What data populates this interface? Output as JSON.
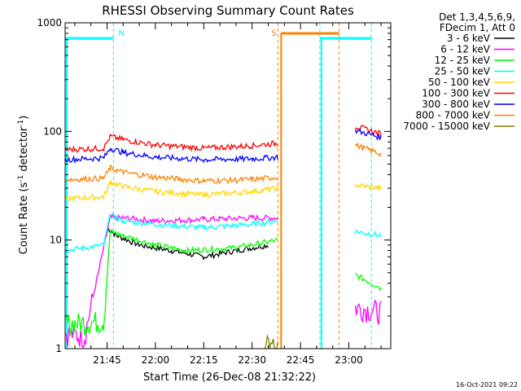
{
  "chart_data": {
    "type": "line",
    "title": "RHESSI Observing Summary Count Rates",
    "xlabel": "Start Time (26-Dec-08 21:32:22)",
    "ylabel_main": "Count Rate (s",
    "ylabel_exp1": "-1",
    "ylabel_mid": " detector",
    "ylabel_exp2": "-1",
    "ylabel_end": ")",
    "y_scale": "log",
    "ylim": [
      1,
      1000
    ],
    "xlim": [
      "21:32",
      "23:13"
    ],
    "y_ticks": [
      "1",
      "10",
      "100",
      "1000"
    ],
    "x_ticks": [
      "21:45",
      "22:00",
      "22:15",
      "22:30",
      "22:45",
      "23:00"
    ],
    "legend_header": [
      "Det 1,3,4,5,6,9,",
      "FDecim 1, Att 0"
    ],
    "legend_position": "right",
    "timestamp": "16-Oct-2021 09:22",
    "series": [
      {
        "name": "3 - 6 keV",
        "color": "#000000",
        "t": [
          "21:45",
          "21:48",
          "21:55",
          "22:05",
          "22:15",
          "22:25",
          "22:35",
          "23:02",
          "23:10"
        ],
        "values": [
          13,
          11,
          9,
          8,
          7,
          8,
          9,
          null,
          null
        ]
      },
      {
        "name": "6 - 12 keV",
        "color": "#ff00ff",
        "t": [
          "21:32",
          "21:38",
          "21:46",
          "21:50",
          "22:00",
          "22:15",
          "22:30",
          "22:38",
          "23:02",
          "23:10"
        ],
        "values": [
          1.4,
          1.3,
          16,
          16,
          15,
          15.5,
          16,
          16,
          2.4,
          2.2
        ]
      },
      {
        "name": "12 - 25 keV",
        "color": "#00ff00",
        "t": [
          "21:32",
          "21:44",
          "21:46",
          "21:50",
          "22:00",
          "22:10",
          "22:25",
          "22:38",
          "23:02",
          "23:10"
        ],
        "values": [
          1.7,
          1.8,
          12,
          11,
          9,
          8,
          8.5,
          10,
          4.8,
          3.6
        ]
      },
      {
        "name": "25 - 50 keV",
        "color": "#00ffff",
        "t": [
          "21:32",
          "21:44",
          "21:46",
          "21:50",
          "22:00",
          "22:15",
          "22:30",
          "22:38",
          "23:02",
          "23:10"
        ],
        "values": [
          8,
          9,
          17,
          15,
          14,
          13,
          14,
          15,
          12,
          11
        ]
      },
      {
        "name": "50 - 100 keV",
        "color": "#ffd700",
        "t": [
          "21:32",
          "21:44",
          "21:46",
          "21:50",
          "22:00",
          "22:15",
          "22:30",
          "22:38",
          "23:02",
          "23:10"
        ],
        "values": [
          24,
          25,
          34,
          31,
          28,
          26,
          28,
          30,
          32,
          30
        ]
      },
      {
        "name": "100 - 300 keV",
        "color": "#ff0000",
        "t": [
          "21:32",
          "21:44",
          "21:46",
          "21:50",
          "22:00",
          "22:15",
          "22:30",
          "22:38",
          "23:02",
          "23:10"
        ],
        "values": [
          68,
          70,
          90,
          84,
          75,
          70,
          74,
          78,
          112,
          95
        ]
      },
      {
        "name": "300 - 800 keV",
        "color": "#0000ff",
        "t": [
          "21:32",
          "21:44",
          "21:46",
          "21:50",
          "22:00",
          "22:15",
          "22:30",
          "22:38",
          "23:02",
          "23:10"
        ],
        "values": [
          55,
          57,
          70,
          64,
          58,
          55,
          56,
          58,
          102,
          88
        ]
      },
      {
        "name": "800 - 7000 keV",
        "color": "#ff8000",
        "t": [
          "21:32",
          "21:44",
          "21:46",
          "21:50",
          "22:00",
          "22:15",
          "22:30",
          "22:38",
          "23:02",
          "23:10"
        ],
        "values": [
          36,
          37,
          46,
          42,
          38,
          35,
          36,
          38,
          75,
          62
        ]
      },
      {
        "name": "7000 - 15000 keV",
        "color": "#808000",
        "t": [
          "22:34",
          "22:38"
        ],
        "values": [
          1.05,
          1.05
        ]
      }
    ],
    "flags": [
      {
        "label": "N",
        "color": "#00ffff",
        "ranges": [
          [
            "21:32",
            "21:47"
          ],
          [
            "22:51",
            "23:07"
          ]
        ]
      },
      {
        "label": "S",
        "color": "#ff8000",
        "ranges": [
          [
            "22:39",
            "22:57"
          ]
        ]
      }
    ],
    "night_lines": [
      "21:32",
      "21:47",
      "22:38",
      "22:51",
      "22:57",
      "23:07"
    ]
  }
}
